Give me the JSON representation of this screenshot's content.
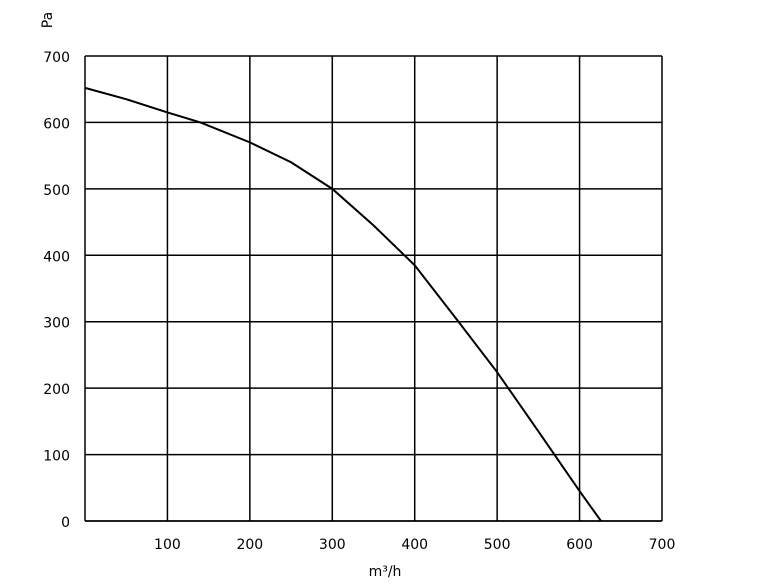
{
  "chart_data": {
    "type": "line",
    "x_label": "m³/h",
    "y_label": "Pa",
    "x": [
      0,
      50,
      100,
      140,
      200,
      250,
      300,
      350,
      400,
      450,
      500,
      550,
      600,
      626
    ],
    "values": [
      652,
      635,
      615,
      600,
      570,
      540,
      500,
      445,
      385,
      305,
      224,
      135,
      45,
      0
    ],
    "color": "#000000",
    "xlim": [
      0,
      700
    ],
    "xticks": [
      100,
      200,
      300,
      400,
      500,
      600,
      700
    ],
    "ylim": [
      0,
      700
    ],
    "yticks": [
      0,
      100,
      200,
      300,
      400,
      500,
      600,
      700
    ],
    "grid": true
  }
}
